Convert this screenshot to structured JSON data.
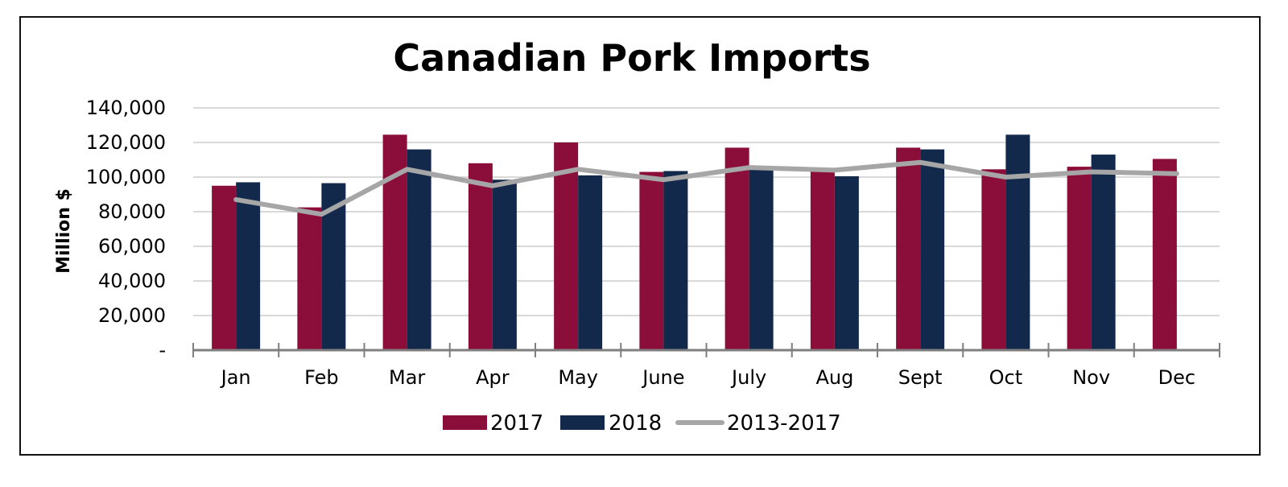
{
  "chart_data": {
    "type": "bar",
    "title": "Canadian Pork Imports",
    "xlabel": "",
    "ylabel": "Million $",
    "ylim": [
      0,
      140000
    ],
    "yticks": [
      0,
      20000,
      40000,
      60000,
      80000,
      100000,
      120000,
      140000
    ],
    "ytick_labels": [
      "-",
      "20,000",
      "40,000",
      "60,000",
      "80,000",
      "100,000",
      "120,000",
      "140,000"
    ],
    "categories": [
      "Jan",
      "Feb",
      "Mar",
      "Apr",
      "May",
      "June",
      "July",
      "Aug",
      "Sept",
      "Oct",
      "Nov",
      "Dec"
    ],
    "series": [
      {
        "name": "2017",
        "kind": "bar",
        "color": "#8b0e3a",
        "values": [
          95000,
          82500,
          124500,
          108000,
          120000,
          103000,
          117000,
          104000,
          117000,
          104500,
          106000,
          110500
        ]
      },
      {
        "name": "2018",
        "kind": "bar",
        "color": "#13294b",
        "values": [
          97000,
          96500,
          116000,
          98500,
          101000,
          103500,
          104500,
          100500,
          116000,
          124500,
          113000,
          null
        ]
      },
      {
        "name": "2013-2017",
        "kind": "line",
        "color": "#a6a6a6",
        "values": [
          87000,
          78500,
          104500,
          95000,
          104500,
          98500,
          105500,
          104000,
          108500,
          100000,
          103000,
          102000
        ]
      }
    ],
    "grid": true,
    "legend_position": "bottom-center"
  }
}
